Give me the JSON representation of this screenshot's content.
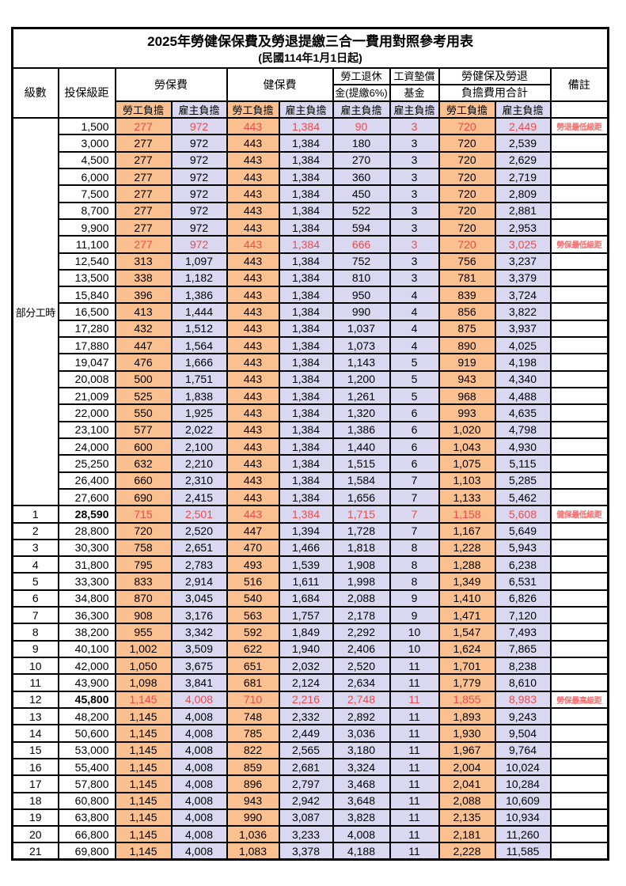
{
  "title": "2025年勞健保保費及勞退提繳三合一費用對照參考用表",
  "subtitle": "(民國114年1月1日起)",
  "header": {
    "level": "級數",
    "bracket": "投保級距",
    "labor_insurance": "勞保費",
    "health_insurance": "健保費",
    "pension_line1": "勞工退休",
    "pension_line2": "金(提繳6%)",
    "wage_fund_line1": "工資墊償",
    "wage_fund_line2": "基金",
    "total_line1": "勞健保及勞退",
    "total_line2": "負擔費用合計",
    "remark": "備註",
    "worker": "勞工負擔",
    "employer": "雇主負擔"
  },
  "part_time_label": "部分工時",
  "part_time_rowspan": 23,
  "colors": {
    "worker_bg": "#FAC090",
    "employer_bg": "#DAD8F0",
    "highlight_red": "#EF4B4B",
    "remark_red": "#F96A6A",
    "border": "#000000"
  },
  "rows": [
    {
      "level": "",
      "bracket": "1,500",
      "values": [
        "277",
        "972",
        "443",
        "1,384",
        "90",
        "3",
        "720",
        "2,449"
      ],
      "red": true,
      "remark": "勞退最低級距"
    },
    {
      "level": "",
      "bracket": "3,000",
      "values": [
        "277",
        "972",
        "443",
        "1,384",
        "180",
        "3",
        "720",
        "2,539"
      ],
      "red": false,
      "remark": ""
    },
    {
      "level": "",
      "bracket": "4,500",
      "values": [
        "277",
        "972",
        "443",
        "1,384",
        "270",
        "3",
        "720",
        "2,629"
      ],
      "red": false,
      "remark": ""
    },
    {
      "level": "",
      "bracket": "6,000",
      "values": [
        "277",
        "972",
        "443",
        "1,384",
        "360",
        "3",
        "720",
        "2,719"
      ],
      "red": false,
      "remark": ""
    },
    {
      "level": "",
      "bracket": "7,500",
      "values": [
        "277",
        "972",
        "443",
        "1,384",
        "450",
        "3",
        "720",
        "2,809"
      ],
      "red": false,
      "remark": ""
    },
    {
      "level": "",
      "bracket": "8,700",
      "values": [
        "277",
        "972",
        "443",
        "1,384",
        "522",
        "3",
        "720",
        "2,881"
      ],
      "red": false,
      "remark": ""
    },
    {
      "level": "",
      "bracket": "9,900",
      "values": [
        "277",
        "972",
        "443",
        "1,384",
        "594",
        "3",
        "720",
        "2,953"
      ],
      "red": false,
      "remark": ""
    },
    {
      "level": "",
      "bracket": "11,100",
      "values": [
        "277",
        "972",
        "443",
        "1,384",
        "666",
        "3",
        "720",
        "3,025"
      ],
      "red": true,
      "remark": "勞保最低級距"
    },
    {
      "level": "",
      "bracket": "12,540",
      "values": [
        "313",
        "1,097",
        "443",
        "1,384",
        "752",
        "3",
        "756",
        "3,237"
      ],
      "red": false,
      "remark": ""
    },
    {
      "level": "",
      "bracket": "13,500",
      "values": [
        "338",
        "1,182",
        "443",
        "1,384",
        "810",
        "3",
        "781",
        "3,379"
      ],
      "red": false,
      "remark": ""
    },
    {
      "level": "",
      "bracket": "15,840",
      "values": [
        "396",
        "1,386",
        "443",
        "1,384",
        "950",
        "4",
        "839",
        "3,724"
      ],
      "red": false,
      "remark": ""
    },
    {
      "level": "",
      "bracket": "16,500",
      "values": [
        "413",
        "1,444",
        "443",
        "1,384",
        "990",
        "4",
        "856",
        "3,822"
      ],
      "red": false,
      "remark": ""
    },
    {
      "level": "",
      "bracket": "17,280",
      "values": [
        "432",
        "1,512",
        "443",
        "1,384",
        "1,037",
        "4",
        "875",
        "3,937"
      ],
      "red": false,
      "remark": ""
    },
    {
      "level": "",
      "bracket": "17,880",
      "values": [
        "447",
        "1,564",
        "443",
        "1,384",
        "1,073",
        "4",
        "890",
        "4,025"
      ],
      "red": false,
      "remark": ""
    },
    {
      "level": "",
      "bracket": "19,047",
      "values": [
        "476",
        "1,666",
        "443",
        "1,384",
        "1,143",
        "5",
        "919",
        "4,198"
      ],
      "red": false,
      "remark": ""
    },
    {
      "level": "",
      "bracket": "20,008",
      "values": [
        "500",
        "1,751",
        "443",
        "1,384",
        "1,200",
        "5",
        "943",
        "4,340"
      ],
      "red": false,
      "remark": ""
    },
    {
      "level": "",
      "bracket": "21,009",
      "values": [
        "525",
        "1,838",
        "443",
        "1,384",
        "1,261",
        "5",
        "968",
        "4,488"
      ],
      "red": false,
      "remark": ""
    },
    {
      "level": "",
      "bracket": "22,000",
      "values": [
        "550",
        "1,925",
        "443",
        "1,384",
        "1,320",
        "6",
        "993",
        "4,635"
      ],
      "red": false,
      "remark": ""
    },
    {
      "level": "",
      "bracket": "23,100",
      "values": [
        "577",
        "2,022",
        "443",
        "1,384",
        "1,386",
        "6",
        "1,020",
        "4,798"
      ],
      "red": false,
      "remark": ""
    },
    {
      "level": "",
      "bracket": "24,000",
      "values": [
        "600",
        "2,100",
        "443",
        "1,384",
        "1,440",
        "6",
        "1,043",
        "4,930"
      ],
      "red": false,
      "remark": ""
    },
    {
      "level": "",
      "bracket": "25,250",
      "values": [
        "632",
        "2,210",
        "443",
        "1,384",
        "1,515",
        "6",
        "1,075",
        "5,115"
      ],
      "red": false,
      "remark": ""
    },
    {
      "level": "",
      "bracket": "26,400",
      "values": [
        "660",
        "2,310",
        "443",
        "1,384",
        "1,584",
        "7",
        "1,103",
        "5,285"
      ],
      "red": false,
      "remark": ""
    },
    {
      "level": "",
      "bracket": "27,600",
      "values": [
        "690",
        "2,415",
        "443",
        "1,384",
        "1,656",
        "7",
        "1,133",
        "5,462"
      ],
      "red": false,
      "remark": ""
    },
    {
      "level": "1",
      "bracket": "28,590",
      "values": [
        "715",
        "2,501",
        "443",
        "1,384",
        "1,715",
        "7",
        "1,158",
        "5,608"
      ],
      "red": true,
      "remark": "健保最低級距",
      "bold_bracket": true
    },
    {
      "level": "2",
      "bracket": "28,800",
      "values": [
        "720",
        "2,520",
        "447",
        "1,394",
        "1,728",
        "7",
        "1,167",
        "5,649"
      ],
      "red": false,
      "remark": ""
    },
    {
      "level": "3",
      "bracket": "30,300",
      "values": [
        "758",
        "2,651",
        "470",
        "1,466",
        "1,818",
        "8",
        "1,228",
        "5,943"
      ],
      "red": false,
      "remark": ""
    },
    {
      "level": "4",
      "bracket": "31,800",
      "values": [
        "795",
        "2,783",
        "493",
        "1,539",
        "1,908",
        "8",
        "1,288",
        "6,238"
      ],
      "red": false,
      "remark": ""
    },
    {
      "level": "5",
      "bracket": "33,300",
      "values": [
        "833",
        "2,914",
        "516",
        "1,611",
        "1,998",
        "8",
        "1,349",
        "6,531"
      ],
      "red": false,
      "remark": ""
    },
    {
      "level": "6",
      "bracket": "34,800",
      "values": [
        "870",
        "3,045",
        "540",
        "1,684",
        "2,088",
        "9",
        "1,410",
        "6,826"
      ],
      "red": false,
      "remark": ""
    },
    {
      "level": "7",
      "bracket": "36,300",
      "values": [
        "908",
        "3,176",
        "563",
        "1,757",
        "2,178",
        "9",
        "1,471",
        "7,120"
      ],
      "red": false,
      "remark": ""
    },
    {
      "level": "8",
      "bracket": "38,200",
      "values": [
        "955",
        "3,342",
        "592",
        "1,849",
        "2,292",
        "10",
        "1,547",
        "7,493"
      ],
      "red": false,
      "remark": ""
    },
    {
      "level": "9",
      "bracket": "40,100",
      "values": [
        "1,002",
        "3,509",
        "622",
        "1,940",
        "2,406",
        "10",
        "1,624",
        "7,865"
      ],
      "red": false,
      "remark": ""
    },
    {
      "level": "10",
      "bracket": "42,000",
      "values": [
        "1,050",
        "3,675",
        "651",
        "2,032",
        "2,520",
        "11",
        "1,701",
        "8,238"
      ],
      "red": false,
      "remark": ""
    },
    {
      "level": "11",
      "bracket": "43,900",
      "values": [
        "1,098",
        "3,841",
        "681",
        "2,124",
        "2,634",
        "11",
        "1,779",
        "8,610"
      ],
      "red": false,
      "remark": ""
    },
    {
      "level": "12",
      "bracket": "45,800",
      "values": [
        "1,145",
        "4,008",
        "710",
        "2,216",
        "2,748",
        "11",
        "1,855",
        "8,983"
      ],
      "red": true,
      "remark": "勞保最高級距",
      "bold_bracket": true
    },
    {
      "level": "13",
      "bracket": "48,200",
      "values": [
        "1,145",
        "4,008",
        "748",
        "2,332",
        "2,892",
        "11",
        "1,893",
        "9,243"
      ],
      "red": false,
      "remark": ""
    },
    {
      "level": "14",
      "bracket": "50,600",
      "values": [
        "1,145",
        "4,008",
        "785",
        "2,449",
        "3,036",
        "11",
        "1,930",
        "9,504"
      ],
      "red": false,
      "remark": ""
    },
    {
      "level": "15",
      "bracket": "53,000",
      "values": [
        "1,145",
        "4,008",
        "822",
        "2,565",
        "3,180",
        "11",
        "1,967",
        "9,764"
      ],
      "red": false,
      "remark": ""
    },
    {
      "level": "16",
      "bracket": "55,400",
      "values": [
        "1,145",
        "4,008",
        "859",
        "2,681",
        "3,324",
        "11",
        "2,004",
        "10,024"
      ],
      "red": false,
      "remark": ""
    },
    {
      "level": "17",
      "bracket": "57,800",
      "values": [
        "1,145",
        "4,008",
        "896",
        "2,797",
        "3,468",
        "11",
        "2,041",
        "10,284"
      ],
      "red": false,
      "remark": ""
    },
    {
      "level": "18",
      "bracket": "60,800",
      "values": [
        "1,145",
        "4,008",
        "943",
        "2,942",
        "3,648",
        "11",
        "2,088",
        "10,609"
      ],
      "red": false,
      "remark": ""
    },
    {
      "level": "19",
      "bracket": "63,800",
      "values": [
        "1,145",
        "4,008",
        "990",
        "3,087",
        "3,828",
        "11",
        "2,135",
        "10,934"
      ],
      "red": false,
      "remark": ""
    },
    {
      "level": "20",
      "bracket": "66,800",
      "values": [
        "1,145",
        "4,008",
        "1,036",
        "3,233",
        "4,008",
        "11",
        "2,181",
        "11,260"
      ],
      "red": false,
      "remark": ""
    },
    {
      "level": "21",
      "bracket": "69,800",
      "values": [
        "1,145",
        "4,008",
        "1,083",
        "3,378",
        "4,188",
        "11",
        "2,228",
        "11,585"
      ],
      "red": false,
      "remark": ""
    }
  ]
}
